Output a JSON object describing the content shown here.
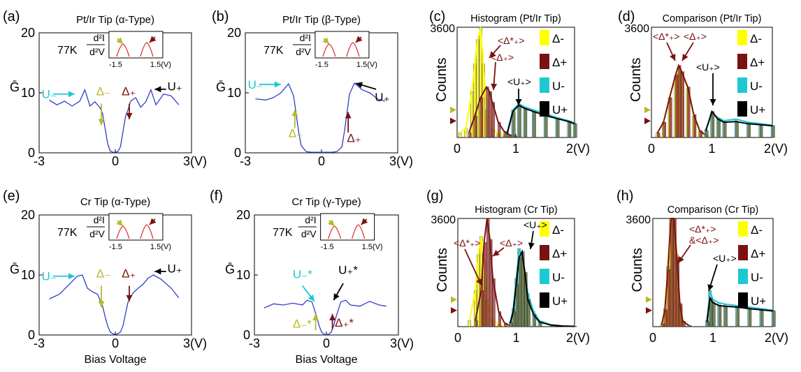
{
  "colors": {
    "curve": "#2f3fc8",
    "yellow": "#ffff00",
    "olive": "#b9b92a",
    "maroon": "#7a1212",
    "cyan": "#1ec8d2",
    "black": "#000000",
    "inset": "#e02020"
  },
  "chart_data": [
    {
      "id": "a",
      "type": "line",
      "panel_label": "(a)",
      "title": "Pt/Ir Tip (α-Type)",
      "ylabel": "Ḡ",
      "x_ticks": [
        "-3",
        "0",
        "3(V)"
      ],
      "y_ticks": [
        "0",
        "10",
        "20"
      ],
      "xlim": [
        -3,
        3
      ],
      "ylim": [
        0,
        20
      ],
      "temperature": "77K",
      "inset": {
        "label_top": "d²I",
        "label_bottom": "d²V",
        "ticks": [
          "-1.5",
          "1.5(V)"
        ]
      },
      "annotations": [
        "U₋",
        "Δ₋",
        "Δ₊",
        "U₊"
      ],
      "x": [
        -2.6,
        -2.3,
        -2.0,
        -1.7,
        -1.4,
        -1.2,
        -1.0,
        -0.8,
        -0.6,
        -0.5,
        -0.4,
        -0.3,
        -0.2,
        -0.1,
        0.0,
        0.1,
        0.2,
        0.3,
        0.4,
        0.5,
        0.6,
        0.8,
        1.0,
        1.2,
        1.4,
        1.6,
        1.9,
        2.2,
        2.5
      ],
      "y": [
        8.8,
        8.0,
        8.6,
        7.8,
        8.6,
        10.5,
        7.8,
        8.5,
        7.5,
        6.5,
        4.0,
        1.5,
        0.3,
        0.1,
        0.1,
        0.2,
        1.0,
        3.5,
        6.0,
        7.2,
        8.6,
        9.2,
        7.6,
        8.5,
        10.5,
        8.0,
        9.8,
        9.5,
        8.0
      ]
    },
    {
      "id": "b",
      "type": "line",
      "panel_label": "(b)",
      "title": "Pt/Ir Tip  (β-Type)",
      "ylabel": "Ḡ",
      "x_ticks": [
        "-3",
        "0",
        "3(V)"
      ],
      "y_ticks": [
        "0",
        "10",
        "20"
      ],
      "xlim": [
        -3,
        3
      ],
      "ylim": [
        0,
        20
      ],
      "temperature": "77K",
      "inset": {
        "label_top": "d²I",
        "label_bottom": "d²V",
        "ticks": [
          "-1.5",
          "1.5(V)"
        ]
      },
      "annotations": [
        "U₋",
        "Δ₋",
        "Δ₊",
        "U₊"
      ],
      "x": [
        -2.6,
        -2.2,
        -1.9,
        -1.6,
        -1.3,
        -1.1,
        -1.0,
        -0.9,
        -0.8,
        -0.6,
        -0.4,
        -0.2,
        0.0,
        0.2,
        0.4,
        0.6,
        0.8,
        0.9,
        1.0,
        1.1,
        1.3,
        1.6,
        1.9,
        2.2,
        2.5
      ],
      "y": [
        9.0,
        8.8,
        9.2,
        10.0,
        11.5,
        9.5,
        6.5,
        3.5,
        1.2,
        0.2,
        0.1,
        0.1,
        0.1,
        0.1,
        0.1,
        0.2,
        1.0,
        3.5,
        6.5,
        9.8,
        11.6,
        10.5,
        10.0,
        9.0,
        8.6
      ]
    },
    {
      "id": "c",
      "type": "bar",
      "panel_label": "(c)",
      "title": "Histogram (Pt/Ir Tip)",
      "ylabel": "Counts",
      "x_ticks": [
        "0",
        "1",
        "2(V)"
      ],
      "y_ticks": [
        "3600"
      ],
      "xlim": [
        0,
        2
      ],
      "ylim": [
        0,
        3600
      ],
      "legend": [
        "Δ-",
        "Δ+",
        "U-",
        "U+"
      ],
      "annotations": [
        "<Δ*₊>",
        "<Δ₊>",
        "<U₊>"
      ],
      "series": [
        {
          "name": "Δ-",
          "x": [
            0.05,
            0.15,
            0.25,
            0.3,
            0.35,
            0.4,
            0.45,
            0.5,
            0.6,
            0.7,
            0.8,
            0.9
          ],
          "values": [
            150,
            300,
            1500,
            2400,
            3200,
            3600,
            2400,
            900,
            300,
            120,
            50,
            20
          ]
        },
        {
          "name": "Δ+",
          "x": [
            0.2,
            0.3,
            0.4,
            0.5,
            0.55,
            0.6,
            0.7,
            0.8,
            0.9,
            1.0
          ],
          "values": [
            150,
            700,
            1300,
            1650,
            1500,
            1150,
            500,
            200,
            80,
            30
          ]
        },
        {
          "name": "U-",
          "x": [
            0.85,
            0.95,
            1.05,
            1.15,
            1.3,
            1.5,
            1.7,
            1.9,
            2.0
          ],
          "values": [
            150,
            900,
            1100,
            1000,
            900,
            780,
            650,
            550,
            480
          ]
        },
        {
          "name": "U+",
          "x": [
            0.85,
            0.95,
            1.05,
            1.15,
            1.3,
            1.5,
            1.7,
            1.9,
            2.0
          ],
          "values": [
            100,
            850,
            1050,
            950,
            850,
            720,
            620,
            520,
            450
          ]
        }
      ]
    },
    {
      "id": "d",
      "type": "bar",
      "panel_label": "(d)",
      "title": "Comparison (Pt/Ir Tip)",
      "ylabel": "Counts",
      "x_ticks": [
        "0",
        "1",
        "2(V)"
      ],
      "y_ticks": [
        "3600"
      ],
      "xlim": [
        0,
        2
      ],
      "ylim": [
        0,
        3600
      ],
      "legend": [
        "Δ-",
        "Δ+",
        "U-",
        "U+"
      ],
      "annotations": [
        "<Δ*₊>",
        "<Δ₊>",
        "<U₊>"
      ],
      "series": [
        {
          "name": "Δ-",
          "x": [
            0.1,
            0.2,
            0.3,
            0.4,
            0.45,
            0.5,
            0.6,
            0.7,
            0.8,
            0.9
          ],
          "values": [
            150,
            500,
            1300,
            2000,
            2300,
            2100,
            1600,
            700,
            200,
            60
          ]
        },
        {
          "name": "Δ+",
          "x": [
            0.1,
            0.2,
            0.3,
            0.4,
            0.45,
            0.5,
            0.6,
            0.7,
            0.8,
            0.9
          ],
          "values": [
            150,
            500,
            1300,
            2050,
            2350,
            2150,
            1650,
            750,
            220,
            70
          ]
        },
        {
          "name": "U-",
          "x": [
            0.9,
            1.0,
            1.1,
            1.2,
            1.4,
            1.6,
            1.8,
            2.0
          ],
          "values": [
            250,
            800,
            650,
            550,
            600,
            500,
            450,
            400
          ]
        },
        {
          "name": "U+",
          "x": [
            0.9,
            1.0,
            1.1,
            1.2,
            1.4,
            1.6,
            1.8,
            2.0
          ],
          "values": [
            220,
            850,
            600,
            500,
            520,
            450,
            420,
            380
          ]
        }
      ]
    },
    {
      "id": "e",
      "type": "line",
      "panel_label": "(e)",
      "title": "Cr Tip (α-Type)",
      "ylabel": "Ḡ",
      "xlabel": "Bias Voltage",
      "x_ticks": [
        "-3",
        "0",
        "3(V)"
      ],
      "y_ticks": [
        "0",
        "10",
        "20"
      ],
      "xlim": [
        -3,
        3
      ],
      "ylim": [
        0,
        20
      ],
      "temperature": "77K",
      "inset": {
        "label_top": "d²I",
        "label_bottom": "d²V",
        "ticks": [
          "-1.5",
          "1.5(V)"
        ]
      },
      "annotations": [
        "U₋",
        "Δ₋",
        "Δ₊",
        "U₊"
      ],
      "x": [
        -2.6,
        -2.2,
        -1.8,
        -1.5,
        -1.3,
        -1.1,
        -0.9,
        -0.7,
        -0.5,
        -0.4,
        -0.3,
        -0.2,
        -0.1,
        0.0,
        0.1,
        0.2,
        0.3,
        0.4,
        0.5,
        0.7,
        0.9,
        1.1,
        1.3,
        1.5,
        1.8,
        2.2,
        2.5
      ],
      "y": [
        6.0,
        6.8,
        8.5,
        9.8,
        10.0,
        7.8,
        7.2,
        6.8,
        4.8,
        3.0,
        1.5,
        0.5,
        0.2,
        0.1,
        0.2,
        0.5,
        1.5,
        3.5,
        5.5,
        7.0,
        7.8,
        8.5,
        9.5,
        10.0,
        9.3,
        7.8,
        6.2
      ]
    },
    {
      "id": "f",
      "type": "line",
      "panel_label": "(f)",
      "title": "Cr Tip (γ-Type)",
      "ylabel": "Ḡ",
      "xlabel": "Bias Voltage",
      "x_ticks": [
        "-3",
        "0",
        "3(V)"
      ],
      "y_ticks": [
        "0",
        "10",
        "20"
      ],
      "xlim": [
        -3,
        3
      ],
      "ylim": [
        0,
        20
      ],
      "temperature": "77K",
      "inset": {
        "label_top": "d²I",
        "label_bottom": "d²V",
        "ticks": [
          "-1.5",
          "1.5(V)"
        ]
      },
      "annotations": [
        "U₋*",
        "U₊*",
        "Δ₋*",
        "Δ₊*"
      ],
      "x": [
        -2.6,
        -2.2,
        -1.8,
        -1.4,
        -1.0,
        -0.8,
        -0.6,
        -0.4,
        -0.3,
        -0.2,
        -0.1,
        0.0,
        0.1,
        0.2,
        0.3,
        0.4,
        0.6,
        0.8,
        1.0,
        1.4,
        1.8,
        2.2,
        2.5
      ],
      "y": [
        4.5,
        5.2,
        5.0,
        5.3,
        5.0,
        5.8,
        5.5,
        3.0,
        1.5,
        0.5,
        0.1,
        0.1,
        0.1,
        0.5,
        1.5,
        3.0,
        5.5,
        5.8,
        5.0,
        4.8,
        5.6,
        5.0,
        4.8
      ]
    },
    {
      "id": "g",
      "type": "bar",
      "panel_label": "(g)",
      "title": "Histogram (Cr Tip)",
      "ylabel": "Counts",
      "x_ticks": [
        "0",
        "1",
        "2(V)"
      ],
      "y_ticks": [
        "3600"
      ],
      "xlim": [
        0,
        2
      ],
      "ylim": [
        0,
        3600
      ],
      "legend": [
        "Δ-",
        "Δ+",
        "U-",
        "U+"
      ],
      "annotations": [
        "<Δ*₊>",
        "<Δ₊>",
        "<U₊>"
      ],
      "series": [
        {
          "name": "Δ-",
          "x": [
            0.2,
            0.3,
            0.35,
            0.4,
            0.45,
            0.5,
            0.6,
            0.7,
            0.8
          ],
          "values": [
            200,
            1200,
            2400,
            3000,
            2200,
            900,
            250,
            60,
            20
          ]
        },
        {
          "name": "Δ+",
          "x": [
            0.3,
            0.4,
            0.45,
            0.5,
            0.55,
            0.6,
            0.7,
            0.8,
            0.9
          ],
          "values": [
            200,
            1200,
            2800,
            3600,
            2900,
            1600,
            500,
            120,
            30
          ]
        },
        {
          "name": "U-",
          "x": [
            0.9,
            0.95,
            1.0,
            1.05,
            1.1,
            1.15,
            1.2,
            1.3,
            1.4,
            1.6,
            1.8,
            2.0
          ],
          "values": [
            150,
            600,
            1600,
            2600,
            2300,
            1800,
            1100,
            500,
            200,
            60,
            20,
            10
          ]
        },
        {
          "name": "U+",
          "x": [
            0.9,
            0.95,
            1.0,
            1.05,
            1.1,
            1.15,
            1.2,
            1.3,
            1.4,
            1.6,
            1.8,
            2.0
          ],
          "values": [
            120,
            500,
            1400,
            2300,
            2500,
            1800,
            900,
            400,
            150,
            50,
            20,
            10
          ]
        }
      ]
    },
    {
      "id": "h",
      "type": "bar",
      "panel_label": "(h)",
      "title": "Comparison (Cr Tip)",
      "ylabel": "Counts",
      "x_ticks": [
        "0",
        "1",
        "2(V)"
      ],
      "y_ticks": [
        "3600"
      ],
      "xlim": [
        0,
        2
      ],
      "ylim": [
        0,
        3600
      ],
      "legend": [
        "Δ-",
        "Δ+",
        "U-",
        "U+"
      ],
      "annotations": [
        "<Δ*₊>",
        "&<Δ₊>",
        "<U₊>"
      ],
      "series": [
        {
          "name": "Δ-",
          "x": [
            0.15,
            0.2,
            0.25,
            0.3,
            0.35,
            0.4,
            0.45,
            0.5,
            0.6
          ],
          "values": [
            100,
            600,
            2000,
            3600,
            3600,
            2400,
            800,
            200,
            40
          ]
        },
        {
          "name": "Δ+",
          "x": [
            0.15,
            0.2,
            0.25,
            0.3,
            0.35,
            0.4,
            0.45,
            0.5,
            0.6
          ],
          "values": [
            100,
            550,
            1900,
            3600,
            3600,
            2300,
            750,
            180,
            40
          ]
        },
        {
          "name": "U-",
          "x": [
            0.9,
            0.95,
            1.0,
            1.1,
            1.2,
            1.4,
            1.6,
            1.8,
            2.0
          ],
          "values": [
            200,
            1200,
            900,
            800,
            750,
            700,
            650,
            600,
            550
          ]
        },
        {
          "name": "U+",
          "x": [
            0.9,
            0.95,
            1.0,
            1.1,
            1.2,
            1.4,
            1.6,
            1.8,
            2.0
          ],
          "values": [
            150,
            950,
            800,
            700,
            680,
            650,
            600,
            560,
            520
          ]
        }
      ]
    }
  ]
}
